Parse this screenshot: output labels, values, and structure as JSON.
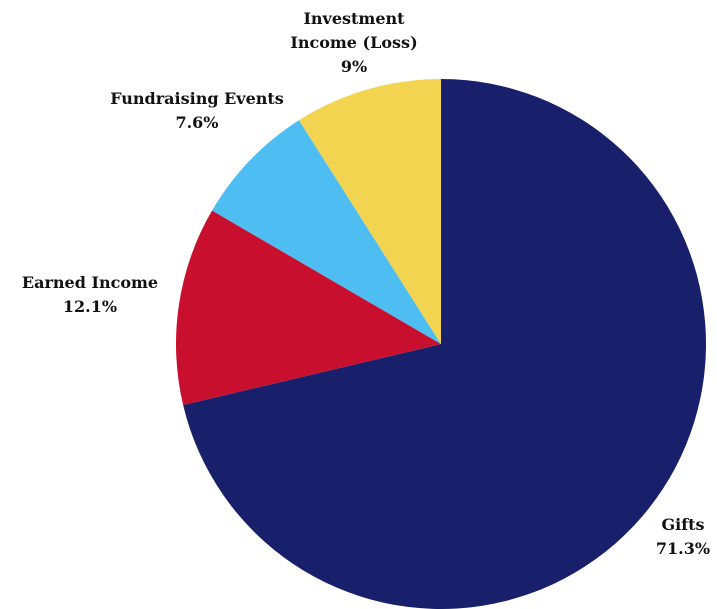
{
  "chart_data": {
    "type": "pie",
    "title": "",
    "slices": [
      {
        "label_lines": [
          "Gifts"
        ],
        "value": 71.3,
        "value_label": "71.3%",
        "color": "#181f6b"
      },
      {
        "label_lines": [
          "Earned Income"
        ],
        "value": 12.1,
        "value_label": "12.1%",
        "color": "#c8102e"
      },
      {
        "label_lines": [
          "Fundraising Events"
        ],
        "value": 7.6,
        "value_label": "7.6%",
        "color": "#4dbdf2"
      },
      {
        "label_lines": [
          "Investment",
          "Income (Loss)"
        ],
        "value": 9.0,
        "value_label": "9%",
        "color": "#f2d450"
      }
    ],
    "start_angle_deg": 0,
    "direction": "clockwise",
    "legend": "none"
  }
}
